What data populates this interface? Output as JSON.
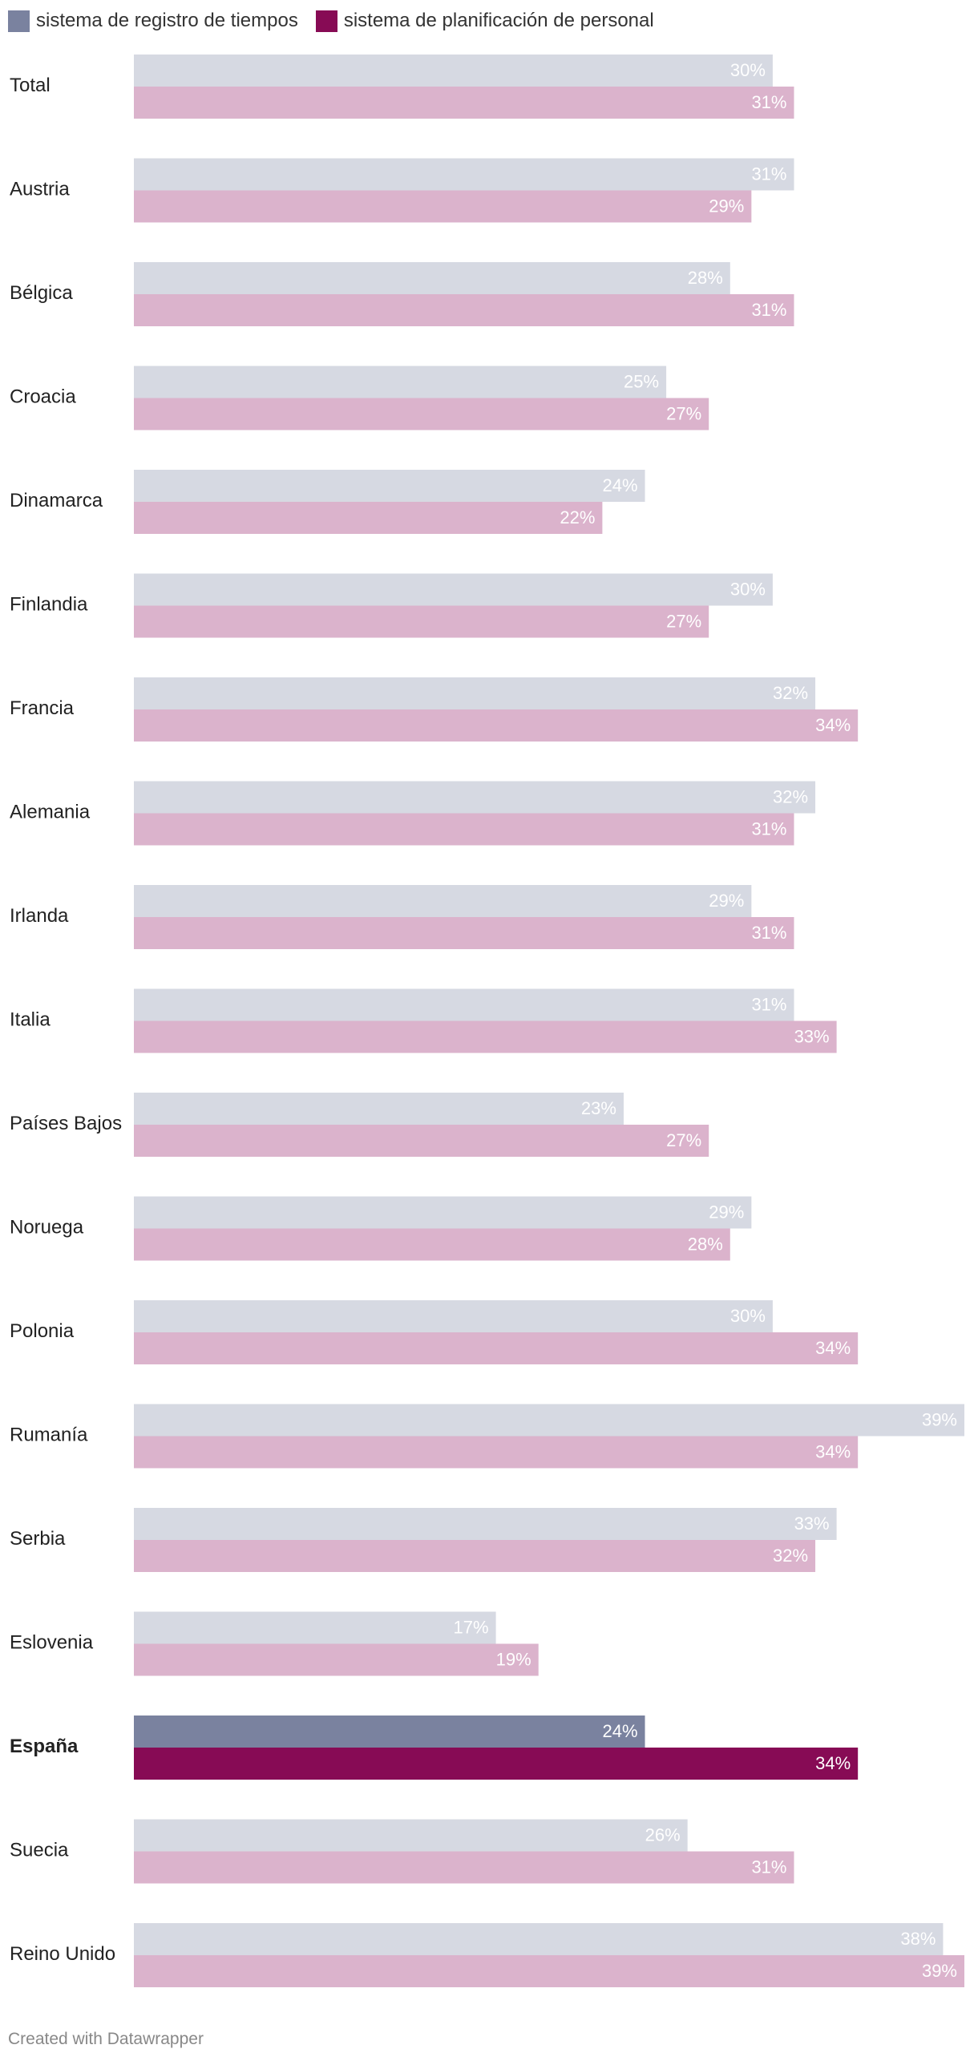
{
  "legend": {
    "items": [
      {
        "label": "sistema de registro de tiempos",
        "color": "#7a829f"
      },
      {
        "label": "sistema de planificación de personal",
        "color": "#870b55"
      }
    ]
  },
  "footer": {
    "credit": "Created with Datawrapper"
  },
  "chart_data": {
    "type": "bar",
    "orientation": "horizontal",
    "value_suffix": "%",
    "highlight": "España",
    "colors": {
      "series1": "#d6d9e2",
      "series2": "#dbb3cc",
      "series1_highlight": "#7a829f",
      "series2_highlight": "#870b55"
    },
    "xlim": [
      0,
      39
    ],
    "categories": [
      "Total",
      "Austria",
      "Bélgica",
      "Croacia",
      "Dinamarca",
      "Finlandia",
      "Francia",
      "Alemania",
      "Irlanda",
      "Italia",
      "Países Bajos",
      "Noruega",
      "Polonia",
      "Rumanía",
      "Serbia",
      "Eslovenia",
      "España",
      "Suecia",
      "Reino Unido"
    ],
    "series": [
      {
        "name": "sistema de registro de tiempos",
        "values": [
          30,
          31,
          28,
          25,
          24,
          30,
          32,
          32,
          29,
          31,
          23,
          29,
          30,
          39,
          33,
          17,
          24,
          26,
          38
        ]
      },
      {
        "name": "sistema de planificación de personal",
        "values": [
          31,
          29,
          31,
          27,
          22,
          27,
          34,
          31,
          31,
          33,
          27,
          28,
          34,
          34,
          32,
          19,
          34,
          31,
          39
        ]
      }
    ]
  }
}
